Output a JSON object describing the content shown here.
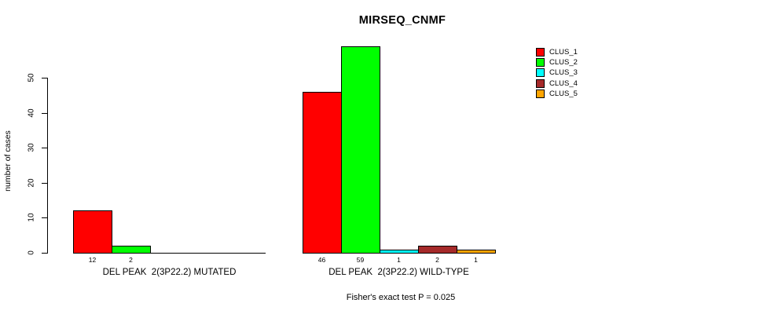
{
  "chart_data": {
    "type": "bar",
    "title": "MIRSEQ_CNMF",
    "ylabel": "number of cases",
    "ylim": [
      0,
      50
    ],
    "yticks": [
      0,
      10,
      20,
      30,
      40,
      50
    ],
    "grid": false,
    "legend_position": "top-right",
    "legend": [
      {
        "label": "CLUS_1",
        "color": "#FF0000"
      },
      {
        "label": "CLUS_2",
        "color": "#00FF00"
      },
      {
        "label": "CLUS_3",
        "color": "#00FFFF"
      },
      {
        "label": "CLUS_4",
        "color": "#A52A2A"
      },
      {
        "label": "CLUS_5",
        "color": "#FFA500"
      }
    ],
    "series": [
      "CLUS_1",
      "CLUS_2",
      "CLUS_3",
      "CLUS_4",
      "CLUS_5"
    ],
    "groups": [
      {
        "label": "DEL PEAK  2(3P22.2) MUTATED",
        "values": [
          12,
          2,
          0,
          0,
          0
        ]
      },
      {
        "label": "DEL PEAK  2(3P22.2) WILD-TYPE",
        "values": [
          46,
          59,
          1,
          2,
          1
        ]
      }
    ],
    "annotation": "Fisher's exact test P = 0.025"
  }
}
